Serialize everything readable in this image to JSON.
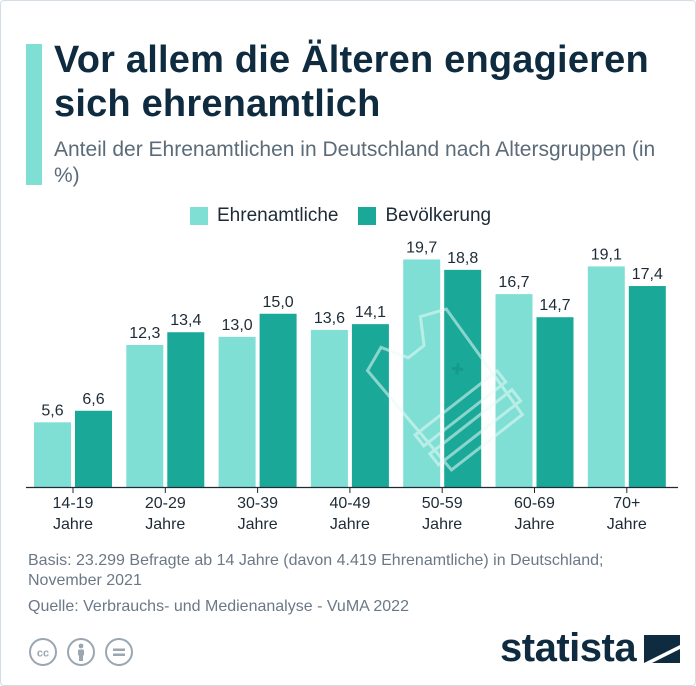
{
  "title": "Vor allem die Älteren engagieren sich ehrenamtlich",
  "subtitle": "Anteil der Ehrenamtlichen in Deutschland nach Altersgruppen (in %)",
  "colors": {
    "accent": "#7fdfd4",
    "ehrenamtliche": "#7fdfd4",
    "bevoelkerung": "#1aa899",
    "title": "#0f2b3f",
    "text": "#1e2b36",
    "muted": "#6b7886"
  },
  "chart_data": {
    "type": "bar",
    "title": "Vor allem die Älteren engagieren sich ehrenamtlich",
    "subtitle": "Anteil der Ehrenamtlichen in Deutschland nach Altersgruppen (in %)",
    "categories": [
      "14-19 Jahre",
      "20-29 Jahre",
      "30-39 Jahre",
      "40-49 Jahre",
      "50-59 Jahre",
      "60-69 Jahre",
      "70+ Jahre"
    ],
    "category_lines": [
      [
        "14-19",
        "Jahre"
      ],
      [
        "20-29",
        "Jahre"
      ],
      [
        "30-39",
        "Jahre"
      ],
      [
        "40-49",
        "Jahre"
      ],
      [
        "50-59",
        "Jahre"
      ],
      [
        "60-69",
        "Jahre"
      ],
      [
        "70+",
        "Jahre"
      ]
    ],
    "series": [
      {
        "name": "Ehrenamtliche",
        "values": [
          5.6,
          12.3,
          13.0,
          13.6,
          19.7,
          16.7,
          19.1
        ],
        "labels": [
          "5,6",
          "12,3",
          "13,0",
          "13,6",
          "19,7",
          "16,7",
          "19,1"
        ]
      },
      {
        "name": "Bevölkerung",
        "values": [
          6.6,
          13.4,
          15.0,
          14.1,
          18.8,
          14.7,
          17.4
        ],
        "labels": [
          "6,6",
          "13,4",
          "15,0",
          "14,1",
          "18,8",
          "14,7",
          "17,4"
        ]
      }
    ],
    "xlabel": "",
    "ylabel": "",
    "ylim": [
      0,
      20
    ],
    "grid": false,
    "legend": "top-center",
    "decoration": "vest-icon"
  },
  "footnote": {
    "basis": "Basis: 23.299 Befragte ab 14 Jahre (davon 4.419 Ehrenamtliche) in Deutschland; November 2021",
    "source": "Quelle: Verbrauchs- und Medienanalyse - VuMA 2022"
  },
  "license_icons": [
    "creative-commons-icon",
    "attribution-icon",
    "no-derivatives-icon"
  ],
  "brand": {
    "name": "statista"
  }
}
